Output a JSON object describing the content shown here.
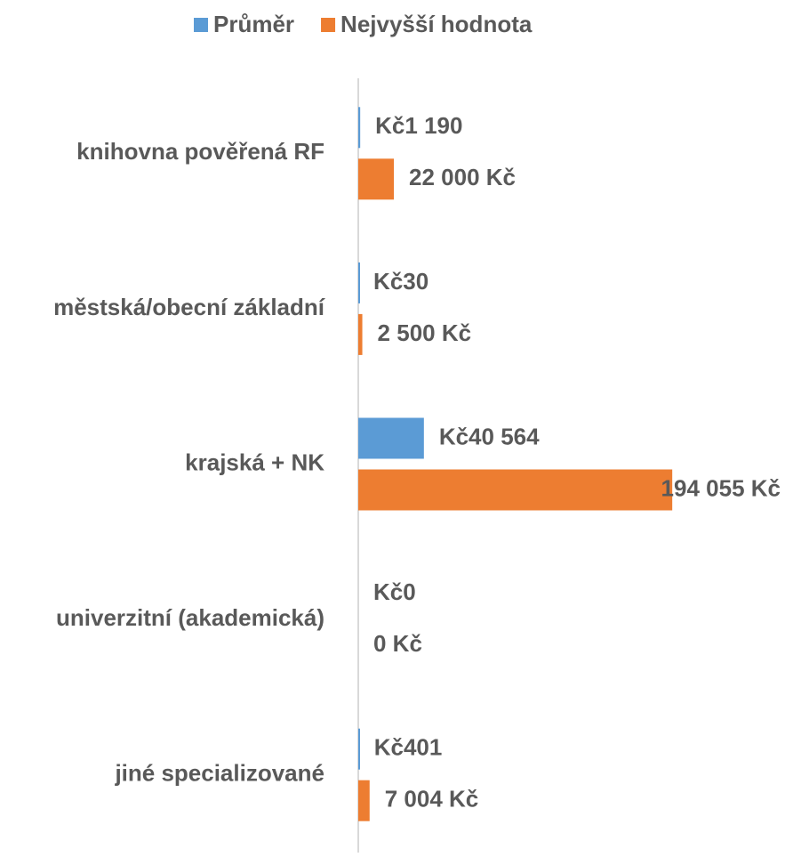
{
  "chart_data": {
    "type": "barh",
    "categories": [
      "knihovna pověřená RF",
      "městská/obecní základní",
      "krajská + NK",
      "univerzitní (akademická)",
      "jiné specializované"
    ],
    "series": [
      {
        "name": "Průměr",
        "color": "#5b9bd5",
        "values": [
          1190,
          30,
          40564,
          0,
          401
        ],
        "value_labels": [
          "Kč1 190",
          "Kč30",
          "Kč40 564",
          "Kč0",
          "Kč401"
        ]
      },
      {
        "name": "Nejvyšší hodnota",
        "color": "#ed7d31",
        "values": [
          22000,
          2500,
          194055,
          0,
          7004
        ],
        "value_labels": [
          "22 000 Kč",
          "2 500 Kč",
          "194 055 Kč",
          "0 Kč",
          "7 004 Kč"
        ]
      }
    ],
    "xlim": [
      0,
      200000
    ],
    "legend": "top"
  }
}
